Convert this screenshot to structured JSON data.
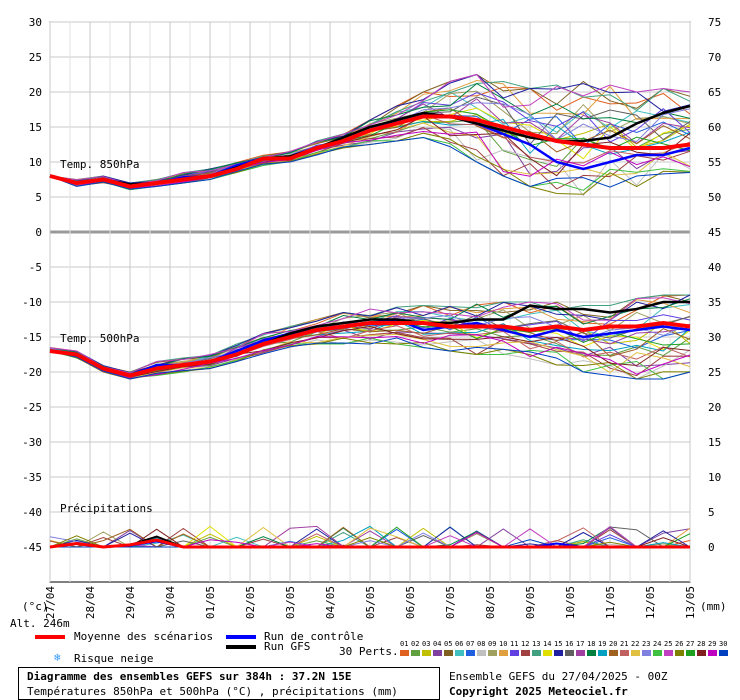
{
  "chart_data": {
    "type": "line",
    "title": "Diagramme des ensembles GEFS sur 384h : 37.2N 15E",
    "subtitle": "Températures 850hPa et 500hPa (°C) , précipitations (mm)",
    "x_dates": [
      "27/04",
      "28/04",
      "29/04",
      "30/04",
      "01/05",
      "02/05",
      "03/05",
      "04/05",
      "05/05",
      "06/05",
      "07/05",
      "08/05",
      "09/05",
      "10/05",
      "11/05",
      "12/05",
      "13/05"
    ],
    "left_ticks": [
      30,
      25,
      20,
      15,
      10,
      5,
      0,
      -5,
      -10,
      -15,
      -20,
      -25,
      -30,
      -35,
      -40,
      -45
    ],
    "right_ticks": [
      75,
      70,
      65,
      60,
      55,
      50,
      45,
      40,
      35,
      30,
      25,
      20,
      15,
      10,
      5,
      0
    ],
    "left_unit": "(°c)",
    "right_unit": "(mm)",
    "altitude_label": "Alt. 246m",
    "panel_labels": {
      "t850": "Temp. 850hPa",
      "t500": "Temp. 500hPa",
      "precip": "Précipitations"
    },
    "series": [
      {
        "name": "Moyenne des scénarios",
        "color": "#ff0000",
        "t850": [
          8,
          7,
          7.5,
          6.5,
          7,
          7.5,
          8,
          9,
          10.5,
          10.5,
          12,
          13,
          14.5,
          15.5,
          16.5,
          16.5,
          16,
          15,
          14,
          13,
          12.5,
          12,
          12,
          12,
          12.5
        ],
        "t500": [
          -17,
          -17.5,
          -19.5,
          -20.5,
          -19.5,
          -19,
          -18.5,
          -17.5,
          -16,
          -15,
          -14,
          -13.5,
          -13,
          -13,
          -13,
          -13.5,
          -13.5,
          -13.5,
          -14,
          -13.5,
          -14,
          -13.5,
          -13.5,
          -13,
          -13.5
        ],
        "precip": [
          0,
          0.5,
          0,
          0.3,
          1,
          0,
          0,
          0,
          0,
          0,
          0,
          0,
          0,
          0,
          0,
          0,
          0,
          0,
          0,
          0,
          0,
          0,
          0,
          0,
          0
        ]
      },
      {
        "name": "Run de contrôle",
        "color": "#0000ff",
        "t850": [
          8,
          7,
          7.5,
          6.8,
          7,
          7.8,
          8,
          9.5,
          10.5,
          10.5,
          12,
          13,
          14.5,
          16,
          17,
          16.5,
          15.5,
          14,
          12.5,
          10,
          9,
          10,
          11,
          11,
          12
        ],
        "t500": [
          -17,
          -17.5,
          -19.5,
          -20.5,
          -19,
          -19,
          -18.5,
          -17,
          -15.5,
          -14.5,
          -14,
          -13.5,
          -13,
          -12.5,
          -14,
          -13.5,
          -13,
          -14,
          -15,
          -14,
          -15,
          -14.5,
          -14,
          -13.5,
          -14
        ],
        "precip": [
          0,
          0.5,
          0,
          0.2,
          0.8,
          0,
          0,
          0,
          0,
          0,
          0,
          0,
          0,
          0,
          0,
          0,
          0,
          0,
          0,
          0.5,
          0,
          0,
          0,
          0,
          0
        ]
      },
      {
        "name": "Run GFS",
        "color": "#000000",
        "t850": [
          8,
          7,
          7.5,
          6.8,
          7,
          7.6,
          8,
          9.2,
          10.5,
          10.8,
          12,
          13.5,
          15,
          16,
          17,
          16.5,
          15.5,
          14.5,
          13.5,
          13,
          13,
          13.5,
          15.5,
          17,
          18
        ],
        "t500": [
          -17,
          -17.5,
          -19.5,
          -20.5,
          -19.5,
          -19,
          -18.5,
          -17.5,
          -16,
          -14.5,
          -13.5,
          -13,
          -12.5,
          -12.5,
          -13,
          -13,
          -12.5,
          -12.5,
          -10.5,
          -11,
          -11,
          -11.5,
          -11,
          -10,
          -10
        ],
        "precip": [
          0,
          0.5,
          0,
          0.3,
          1.5,
          0,
          0,
          0,
          0,
          0,
          0,
          0,
          0,
          0,
          0,
          0,
          0,
          0,
          0,
          0,
          0,
          0,
          0,
          0,
          0
        ]
      }
    ],
    "ensemble_t850_range": {
      "min": [
        8,
        6.5,
        7,
        6,
        6.5,
        7,
        7.5,
        8.5,
        9.5,
        10,
        11,
        12,
        12.5,
        13,
        13.5,
        12,
        10,
        8,
        6.5,
        5.5,
        5,
        6,
        6.5,
        7.5,
        8.5
      ],
      "max": [
        8,
        7.5,
        8,
        7,
        7.5,
        8.5,
        9,
        10,
        11,
        11.5,
        13,
        14,
        16,
        18,
        20,
        21.5,
        22.5,
        21.5,
        20.5,
        21,
        21.5,
        21,
        20,
        20.5,
        20
      ]
    },
    "ensemble_t500_range": {
      "min": [
        -17,
        -18,
        -20,
        -21,
        -20.5,
        -20,
        -19.5,
        -18.5,
        -17.5,
        -16.5,
        -16,
        -16,
        -16,
        -16,
        -16.5,
        -17,
        -17.5,
        -18,
        -18.5,
        -19,
        -20,
        -20.5,
        -21,
        -21,
        -20
      ],
      "max": [
        -16.5,
        -17,
        -19,
        -20,
        -18.5,
        -18,
        -17.5,
        -16,
        -14.5,
        -13.5,
        -12.5,
        -11.5,
        -11,
        -10.5,
        -10.5,
        -10.5,
        -10,
        -10,
        -10,
        -10,
        -10.5,
        -10.5,
        -9.5,
        -9,
        -9
      ]
    }
  },
  "legend": {
    "mean_label": "Moyenne des scénarios",
    "control_label": "Run de contrôle",
    "gfs_label": "Run GFS",
    "snow_label": "Risque neige",
    "perts_label": "30 Perts.",
    "pert_numbers": [
      "01",
      "02",
      "03",
      "04",
      "05",
      "06",
      "07",
      "08",
      "09",
      "10",
      "11",
      "12",
      "13",
      "14",
      "15",
      "16",
      "17",
      "18",
      "19",
      "20",
      "21",
      "22",
      "23",
      "24",
      "25",
      "26",
      "27",
      "28",
      "29",
      "30"
    ],
    "pert_colors": [
      "#e06020",
      "#60a040",
      "#c0c000",
      "#8040a0",
      "#806020",
      "#40c0c0",
      "#2060e0",
      "#c0c0c0",
      "#a0a060",
      "#e0a040",
      "#6040e0",
      "#a04040",
      "#40a080",
      "#e0e000",
      "#2020a0",
      "#606060",
      "#a040a0",
      "#008040",
      "#00a0c0",
      "#a06020",
      "#c06060",
      "#e0c040",
      "#8080e0",
      "#40c040",
      "#c040c0",
      "#808000",
      "#20a020",
      "#802020",
      "#c000c0",
      "#0040c0"
    ],
    "snow_color": "#3399ff"
  },
  "footer": {
    "title": "Diagramme des ensembles GEFS sur 384h : 37.2N 15E",
    "subtitle": "Températures 850hPa et 500hPa (°C) , précipitations (mm)",
    "run_info": "Ensemble GEFS du 27/04/2025 - 00Z",
    "copyright": "Copyright 2025 Meteociel.fr"
  }
}
